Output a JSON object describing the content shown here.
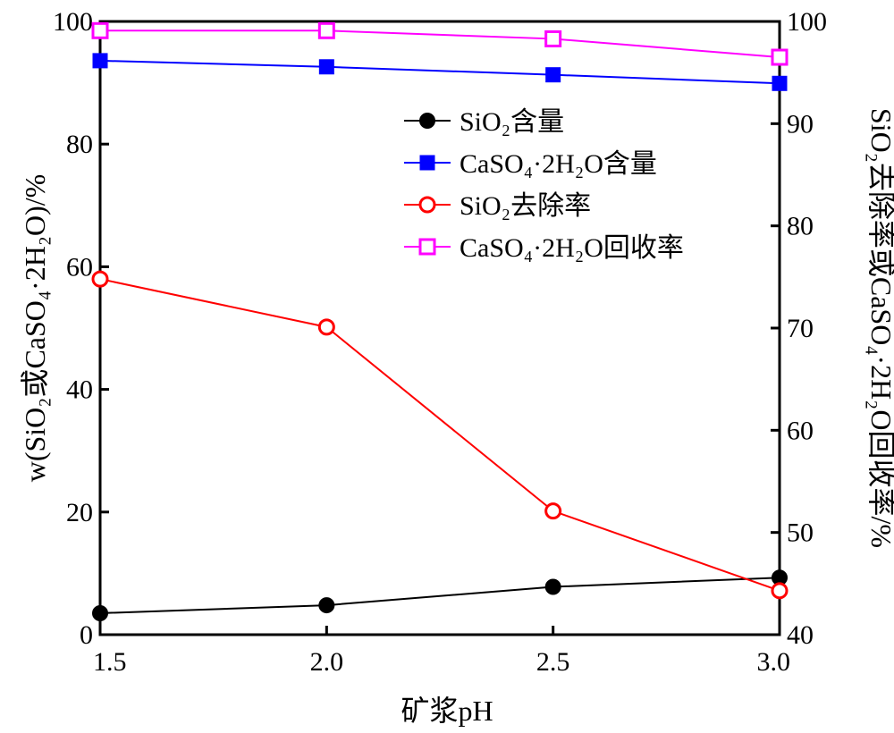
{
  "chart_data": {
    "type": "line",
    "xlabel": "矿浆pH",
    "ylabel_left": "w(SiO₂或CaSO₄·2H₂O)/%",
    "ylabel_right": "SiO₂去除率或CaSO₄·2H₂O回收率/%",
    "xlim": [
      1.5,
      3.0
    ],
    "ylim_left": [
      0,
      100
    ],
    "ylim_right": [
      40,
      100
    ],
    "x_ticks": [
      "1.5",
      "2.0",
      "2.5",
      "3.0"
    ],
    "y_left_ticks": [
      "0",
      "20",
      "40",
      "60",
      "80",
      "100"
    ],
    "y_right_ticks": [
      "40",
      "50",
      "60",
      "70",
      "80",
      "90",
      "100"
    ],
    "x": [
      1.5,
      2.0,
      2.5,
      3.0
    ],
    "legend_position": "upper-right",
    "series": [
      {
        "name": "SiO₂含量",
        "axis": "left",
        "values": [
          3.5,
          4.8,
          7.8,
          9.3
        ],
        "color": "#000000",
        "marker": "filled-circle"
      },
      {
        "name": "CaSO₄·2H₂O含量",
        "axis": "left",
        "values": [
          93.6,
          92.6,
          91.3,
          89.9
        ],
        "color": "#0000ff",
        "marker": "filled-square"
      },
      {
        "name": "SiO₂去除率",
        "axis": "right",
        "values": [
          74.8,
          70.1,
          52.1,
          44.3
        ],
        "color": "#ff0000",
        "marker": "open-circle"
      },
      {
        "name": "CaSO₄·2H₂O回收率",
        "axis": "right",
        "values": [
          99.1,
          99.1,
          98.3,
          96.5
        ],
        "color": "#ff00ff",
        "marker": "open-square"
      }
    ]
  }
}
